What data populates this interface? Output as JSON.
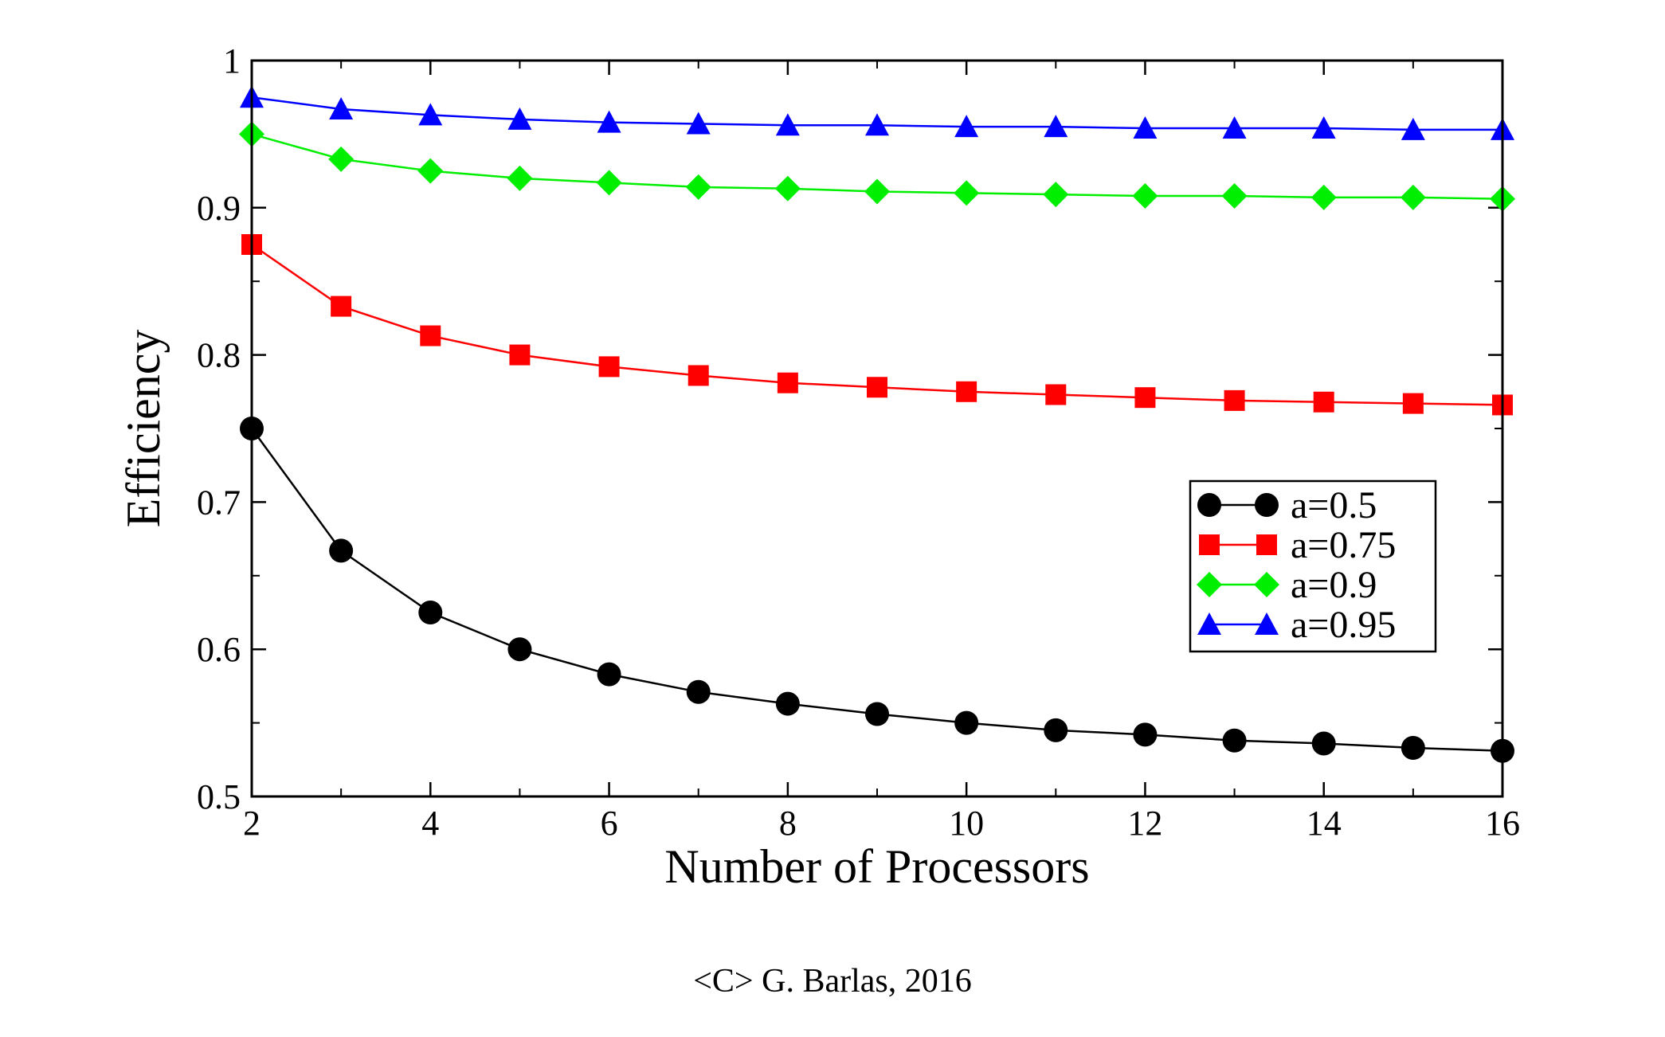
{
  "chart_data": {
    "type": "line",
    "title": "",
    "xlabel": "Number of Processors",
    "ylabel": "Efficiency",
    "xlim": [
      2,
      16
    ],
    "ylim": [
      0.5,
      1
    ],
    "xticks": [
      2,
      4,
      6,
      8,
      10,
      12,
      14,
      16
    ],
    "xtick_labels": [
      "2",
      "4",
      "6",
      "8",
      "10",
      "12",
      "14",
      "16"
    ],
    "yticks": [
      0.5,
      0.6,
      0.7,
      0.8,
      0.9,
      1
    ],
    "ytick_labels": [
      "0.5",
      "0.6",
      "0.7",
      "0.8",
      "0.9",
      "1"
    ],
    "grid": false,
    "legend_position": "center-right",
    "x": [
      2,
      3,
      4,
      5,
      6,
      7,
      8,
      9,
      10,
      11,
      12,
      13,
      14,
      15,
      16
    ],
    "series": [
      {
        "name": "a=0.5",
        "color": "#000000",
        "marker": "circle",
        "values": [
          0.75,
          0.667,
          0.625,
          0.6,
          0.583,
          0.571,
          0.563,
          0.556,
          0.55,
          0.545,
          0.542,
          0.538,
          0.536,
          0.533,
          0.531
        ]
      },
      {
        "name": "a=0.75",
        "color": "#ff0000",
        "marker": "square",
        "values": [
          0.875,
          0.833,
          0.813,
          0.8,
          0.792,
          0.786,
          0.781,
          0.778,
          0.775,
          0.773,
          0.771,
          0.769,
          0.768,
          0.767,
          0.766
        ]
      },
      {
        "name": "a=0.9",
        "color": "#00ee00",
        "marker": "diamond",
        "values": [
          0.95,
          0.933,
          0.925,
          0.92,
          0.917,
          0.914,
          0.913,
          0.911,
          0.91,
          0.909,
          0.908,
          0.908,
          0.907,
          0.907,
          0.906
        ]
      },
      {
        "name": "a=0.95",
        "color": "#0000ff",
        "marker": "triangle",
        "values": [
          0.975,
          0.967,
          0.963,
          0.96,
          0.958,
          0.957,
          0.956,
          0.956,
          0.955,
          0.955,
          0.954,
          0.954,
          0.954,
          0.953,
          0.953
        ]
      }
    ]
  },
  "credit": "<C> G. Barlas, 2016"
}
